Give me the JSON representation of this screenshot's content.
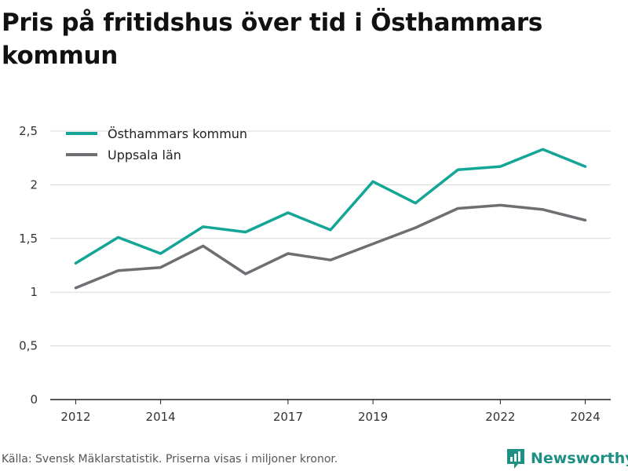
{
  "title": "Pris på fritidshus över tid i Östhammars kommun",
  "source": "Källa: Svensk Mäklarstatistik. Priserna visas i miljoner kronor.",
  "brand": {
    "name": "Newsworthy",
    "icon": "newsworthy-logo-icon"
  },
  "colors": {
    "series_1": "#13a596",
    "series_2": "#6e6e73",
    "brand": "#1d8f84",
    "grid": "#d9d9d9"
  },
  "chart_data": {
    "type": "line",
    "x": [
      2012,
      2013,
      2014,
      2015,
      2016,
      2017,
      2018,
      2019,
      2020,
      2021,
      2022,
      2023,
      2024
    ],
    "x_ticks": [
      "2012",
      "2014",
      "2017",
      "2019",
      "2022",
      "2024"
    ],
    "x_tick_values": [
      2012,
      2014,
      2017,
      2019,
      2022,
      2024
    ],
    "y_ticks": [
      "0",
      "0,5",
      "1",
      "1,5",
      "2",
      "2,5"
    ],
    "y_tick_values": [
      0,
      0.5,
      1,
      1.5,
      2,
      2.5
    ],
    "ylim": [
      0,
      2.5
    ],
    "xlim": [
      2011.4,
      2024.6
    ],
    "grid": true,
    "legend": "top-left",
    "series": [
      {
        "name": "Östhammars kommun",
        "color": "#13a596",
        "values": [
          1.27,
          1.51,
          1.36,
          1.61,
          1.56,
          1.74,
          1.58,
          2.03,
          1.83,
          2.14,
          2.17,
          2.33,
          2.17
        ]
      },
      {
        "name": "Uppsala län",
        "color": "#6e6e73",
        "values": [
          1.04,
          1.2,
          1.23,
          1.43,
          1.17,
          1.36,
          1.3,
          1.45,
          1.6,
          1.78,
          1.81,
          1.77,
          1.67
        ]
      }
    ]
  }
}
